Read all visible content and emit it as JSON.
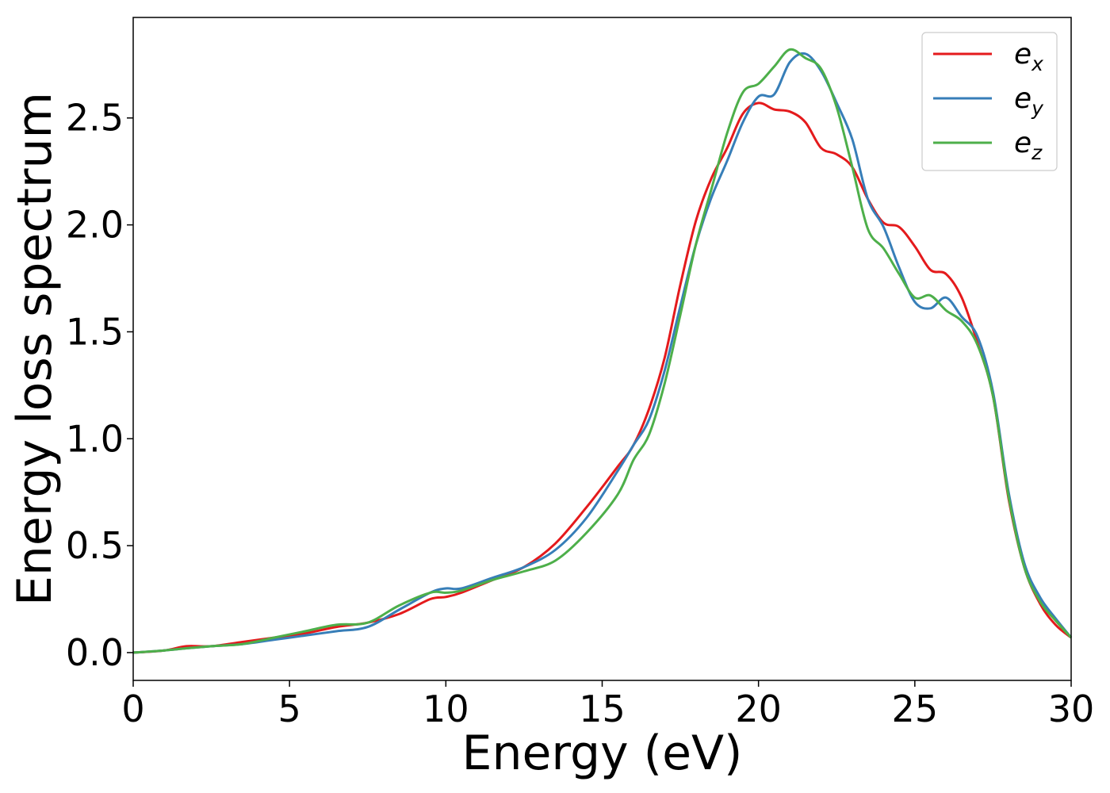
{
  "chart_data": {
    "type": "line",
    "title": "",
    "xlabel": "Energy (eV)",
    "ylabel": "Energy loss spectrum",
    "xlim": [
      0,
      30
    ],
    "ylim": [
      -0.13,
      2.97
    ],
    "xticks": [
      "0",
      "5",
      "10",
      "15",
      "20",
      "25",
      "30"
    ],
    "yticks": [
      "0.0",
      "0.5",
      "1.0",
      "1.5",
      "2.0",
      "2.5"
    ],
    "grid": false,
    "legend_position": "top-right",
    "series": [
      {
        "name": "e",
        "subscript": "x",
        "color": "#e41a1c",
        "x": [
          0,
          1,
          1.7,
          2.5,
          3.5,
          4.5,
          5.5,
          6.5,
          7.5,
          8.5,
          9.5,
          10,
          10.5,
          11.5,
          12.5,
          13.5,
          14.5,
          15.5,
          16,
          16.5,
          17,
          17.5,
          18,
          18.5,
          19,
          19.5,
          20,
          20.5,
          21,
          21.5,
          22,
          22.5,
          23,
          23.5,
          24,
          24.5,
          25,
          25.5,
          26,
          26.5,
          27,
          27.5,
          28,
          28.5,
          29,
          29.5,
          30
        ],
        "y": [
          0.0,
          0.01,
          0.03,
          0.03,
          0.05,
          0.07,
          0.09,
          0.12,
          0.14,
          0.18,
          0.25,
          0.26,
          0.28,
          0.34,
          0.4,
          0.51,
          0.68,
          0.87,
          0.97,
          1.14,
          1.38,
          1.72,
          2.02,
          2.22,
          2.36,
          2.52,
          2.57,
          2.54,
          2.53,
          2.48,
          2.36,
          2.33,
          2.27,
          2.12,
          2.01,
          1.99,
          1.9,
          1.79,
          1.77,
          1.66,
          1.45,
          1.2,
          0.72,
          0.4,
          0.23,
          0.13,
          0.07
        ]
      },
      {
        "name": "e",
        "subscript": "y",
        "color": "#377eb8",
        "x": [
          0,
          1,
          1.7,
          2.5,
          3.5,
          4.5,
          5.5,
          6.5,
          7.5,
          8.5,
          9.5,
          10,
          10.5,
          11.5,
          12.5,
          13.5,
          14.5,
          15.5,
          16,
          16.5,
          17,
          17.5,
          18,
          18.5,
          19,
          19.5,
          20,
          20.5,
          21,
          21.5,
          22,
          22.5,
          23,
          23.5,
          24,
          24.5,
          25,
          25.5,
          26,
          26.5,
          27,
          27.5,
          28,
          28.5,
          29,
          29.5,
          30
        ],
        "y": [
          0.0,
          0.01,
          0.02,
          0.03,
          0.04,
          0.06,
          0.08,
          0.1,
          0.12,
          0.2,
          0.28,
          0.3,
          0.3,
          0.35,
          0.4,
          0.48,
          0.63,
          0.85,
          0.97,
          1.09,
          1.32,
          1.62,
          1.91,
          2.13,
          2.3,
          2.48,
          2.6,
          2.61,
          2.76,
          2.8,
          2.72,
          2.57,
          2.4,
          2.12,
          1.99,
          1.8,
          1.64,
          1.61,
          1.66,
          1.57,
          1.48,
          1.22,
          0.75,
          0.42,
          0.26,
          0.16,
          0.07
        ]
      },
      {
        "name": "e",
        "subscript": "z",
        "color": "#4daf4a",
        "x": [
          0,
          1,
          1.7,
          2.5,
          3.5,
          4.5,
          5.5,
          6.5,
          7.5,
          8.5,
          9.5,
          10,
          10.5,
          11.5,
          12.5,
          13.5,
          14.5,
          15.5,
          16,
          16.5,
          17,
          17.5,
          18,
          18.5,
          19,
          19.5,
          20,
          20.5,
          21,
          21.5,
          22,
          22.5,
          23,
          23.5,
          24,
          24.5,
          25,
          25.5,
          26,
          26.5,
          27,
          27.5,
          28,
          28.5,
          29,
          29.5,
          30
        ],
        "y": [
          0.0,
          0.01,
          0.02,
          0.03,
          0.04,
          0.07,
          0.1,
          0.13,
          0.14,
          0.22,
          0.28,
          0.28,
          0.29,
          0.34,
          0.38,
          0.43,
          0.56,
          0.74,
          0.9,
          1.02,
          1.26,
          1.58,
          1.91,
          2.17,
          2.43,
          2.62,
          2.66,
          2.74,
          2.82,
          2.78,
          2.73,
          2.55,
          2.27,
          1.98,
          1.89,
          1.77,
          1.66,
          1.67,
          1.6,
          1.55,
          1.44,
          1.2,
          0.73,
          0.4,
          0.24,
          0.15,
          0.07
        ]
      }
    ]
  }
}
